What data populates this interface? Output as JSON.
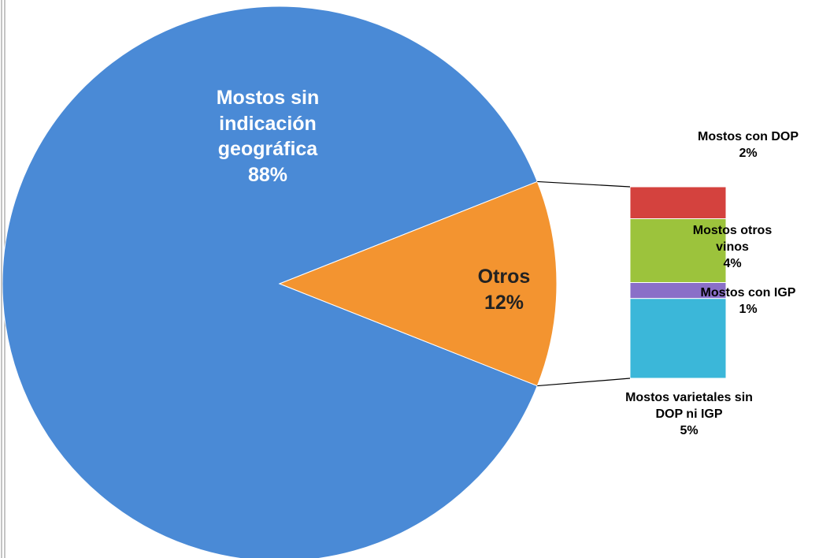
{
  "chart_data": {
    "type": "pie",
    "categories": [
      "Mostos sin indicación geográfica",
      "Otros"
    ],
    "values": [
      88,
      12
    ],
    "value_labels": [
      "88%",
      "12%"
    ],
    "colors": [
      "#4a8ad6",
      "#f39430"
    ],
    "breakdown": {
      "categories": [
        "Mostos con DOP",
        "Mostos otros vinos",
        "Mostos con IGP",
        "Mostos varietales sin DOP ni IGP"
      ],
      "values": [
        2,
        4,
        1,
        5
      ],
      "value_labels": [
        "2%",
        "4%",
        "1%",
        "5%"
      ],
      "colors": [
        "#d4423e",
        "#9cc33c",
        "#8a6fc8",
        "#3bb7d9"
      ]
    }
  }
}
